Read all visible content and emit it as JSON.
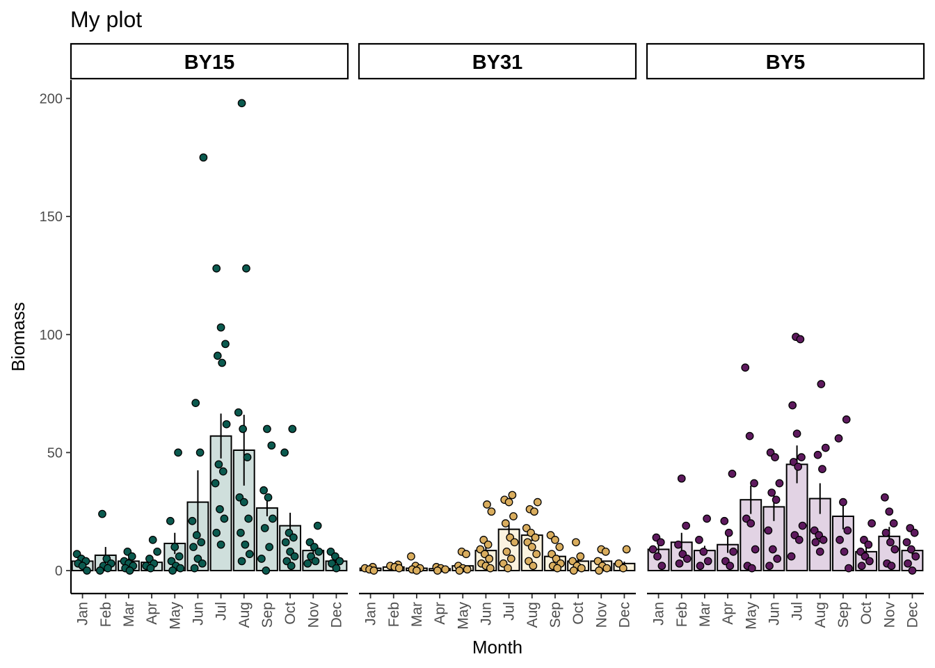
{
  "chart_data": {
    "type": "bar",
    "title": "My plot",
    "xlabel": "Month",
    "ylabel": "Biomass",
    "ylim": [
      0,
      210
    ],
    "yticks": [
      0,
      50,
      100,
      150,
      200
    ],
    "grid": false,
    "categories": [
      "Jan",
      "Feb",
      "Mar",
      "Apr",
      "May",
      "Jun",
      "Jul",
      "Aug",
      "Sep",
      "Oct",
      "Nov",
      "Dec"
    ],
    "facets": [
      {
        "name": "BY15",
        "color": "#0b5a4f",
        "bar_fill": "#cfdfdc",
        "means": [
          4,
          6.5,
          4,
          3.5,
          11.5,
          29,
          57,
          51,
          26.5,
          19,
          8.5,
          4
        ],
        "se": [
          0.8,
          3.5,
          1.2,
          1.3,
          4.5,
          13.5,
          9.5,
          15,
          3.5,
          5.5,
          2,
          1
        ],
        "points": [
          [
            7,
            5,
            4,
            3,
            2,
            0
          ],
          [
            24,
            5,
            3,
            2,
            1,
            0
          ],
          [
            8,
            6,
            4,
            3,
            2,
            1,
            0
          ],
          [
            13,
            8,
            5,
            3,
            2,
            1
          ],
          [
            50,
            21,
            10,
            6,
            4,
            2,
            1,
            0
          ],
          [
            175,
            71,
            50,
            21,
            15,
            12,
            10,
            5,
            3,
            1
          ],
          [
            128,
            103,
            96,
            91,
            88,
            62,
            45,
            42,
            37,
            26,
            22,
            16,
            11
          ],
          [
            198,
            128,
            67,
            60,
            48,
            31,
            29,
            22,
            16,
            11,
            7,
            4
          ],
          [
            60,
            53,
            34,
            31,
            22,
            18,
            10,
            5,
            0
          ],
          [
            60,
            50,
            16,
            14,
            12,
            8,
            6,
            4,
            2
          ],
          [
            19,
            12,
            10,
            8,
            6,
            4,
            3
          ],
          [
            8,
            6,
            4,
            3,
            1
          ]
        ]
      },
      {
        "name": "BY31",
        "color": "#d9ad5e",
        "bar_fill": "#fbf3df",
        "means": [
          1,
          1.5,
          1,
          0.8,
          2,
          8.5,
          17.5,
          15,
          6,
          4,
          4,
          3
        ],
        "se": [
          0.3,
          0.4,
          0.5,
          0.2,
          0.6,
          2.5,
          2.5,
          2.5,
          1.5,
          1,
          1.2,
          0.8
        ],
        "points": [
          [
            1.5,
            1,
            0.5,
            0
          ],
          [
            2.5,
            2,
            1.5,
            1
          ],
          [
            6,
            2,
            1,
            0.5,
            0
          ],
          [
            1.5,
            1,
            0.5,
            0
          ],
          [
            8,
            7,
            2,
            1,
            0.5,
            0
          ],
          [
            28,
            25,
            13,
            11,
            9,
            7,
            5,
            3,
            2,
            1
          ],
          [
            32,
            30,
            29,
            23,
            20,
            14,
            12,
            8,
            5,
            3,
            1
          ],
          [
            29,
            26,
            25,
            18,
            16,
            14,
            12,
            10,
            7,
            4,
            2
          ],
          [
            15,
            13,
            10,
            7,
            5,
            3,
            2,
            1
          ],
          [
            12,
            6,
            4,
            2,
            1,
            0
          ],
          [
            9,
            8,
            4,
            2,
            1,
            0
          ],
          [
            9,
            3,
            1
          ]
        ]
      },
      {
        "name": "BY5",
        "color": "#5e1a5e",
        "bar_fill": "#e2d3e4",
        "means": [
          9,
          12,
          8.5,
          11,
          30,
          27,
          45,
          30.5,
          23,
          8,
          14.5,
          8.5
        ],
        "se": [
          2.5,
          4,
          2,
          3.5,
          6,
          6,
          8,
          6.5,
          5.5,
          2,
          4,
          2
        ],
        "points": [
          [
            14,
            12,
            9,
            6,
            2
          ],
          [
            39,
            19,
            11,
            7,
            5,
            3
          ],
          [
            22,
            13,
            8,
            4,
            2
          ],
          [
            41,
            21,
            16,
            8,
            4,
            2
          ],
          [
            86,
            57,
            37,
            22,
            20,
            9,
            2,
            1
          ],
          [
            50,
            48,
            37,
            33,
            30,
            17,
            9,
            5,
            2
          ],
          [
            99,
            98,
            70,
            58,
            48,
            46,
            44,
            19,
            15,
            13,
            6
          ],
          [
            79,
            52,
            49,
            43,
            17,
            15,
            13,
            12,
            8
          ],
          [
            64,
            56,
            29,
            17,
            13,
            8,
            1
          ],
          [
            20,
            13,
            11,
            8,
            6,
            4,
            2
          ],
          [
            31,
            25,
            20,
            16,
            12,
            9,
            3,
            2
          ],
          [
            18,
            16,
            12,
            9,
            6,
            3,
            0
          ]
        ]
      }
    ]
  }
}
